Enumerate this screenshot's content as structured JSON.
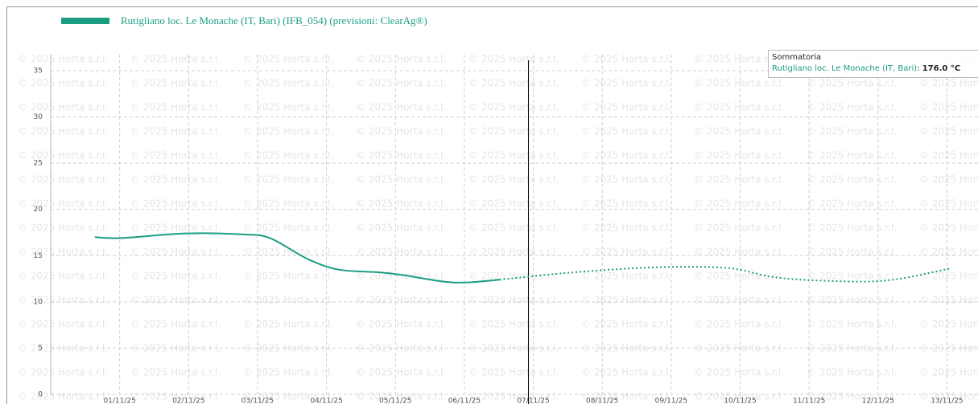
{
  "chart_data": {
    "type": "line",
    "series": [
      {
        "name": "Rutigliano loc. Le Monache (IT, Bari) (IFB_054) (previsioni: ClearAg®)",
        "color": "#1a9e82",
        "x": [
          0.64,
          1.02,
          1.96,
          2.77,
          3.18,
          3.71,
          4.17,
          4.76,
          5.11,
          5.69,
          6.04,
          6.51,
          7.44,
          8.37,
          9.19,
          9.89,
          10.47,
          11.17,
          12.11,
          13.04
        ],
        "values": [
          17.0,
          16.9,
          17.4,
          17.3,
          16.9,
          14.7,
          13.5,
          13.2,
          12.9,
          12.2,
          12.1,
          12.4,
          13.1,
          13.6,
          13.8,
          13.6,
          12.7,
          12.3,
          12.3,
          13.6
        ]
      }
    ],
    "forecast_from": 6.51,
    "marker_x": 6.93,
    "xlim": [
      0,
      13.45
    ],
    "xticks": [
      {
        "value": 1,
        "label": "01/11/25"
      },
      {
        "value": 2,
        "label": "02/11/25"
      },
      {
        "value": 3,
        "label": "03/11/25"
      },
      {
        "value": 4,
        "label": "04/11/25"
      },
      {
        "value": 5,
        "label": "05/11/25"
      },
      {
        "value": 6,
        "label": "06/11/25"
      },
      {
        "value": 7,
        "label": "07/11/25"
      },
      {
        "value": 8,
        "label": "08/11/25"
      },
      {
        "value": 9,
        "label": "09/11/25"
      },
      {
        "value": 10,
        "label": "10/11/25"
      },
      {
        "value": 11,
        "label": "11/11/25"
      },
      {
        "value": 12,
        "label": "12/11/25"
      },
      {
        "value": 13,
        "label": "13/11/25"
      }
    ],
    "ylim": [
      0,
      35
    ],
    "yticks": [
      0,
      5,
      10,
      15,
      20,
      25,
      30,
      35
    ],
    "grid": true,
    "watermark": "© 2025 Horta s.r.l.",
    "tooltip": {
      "title": "Sommatoria",
      "value_label": "176.0 °C"
    }
  }
}
